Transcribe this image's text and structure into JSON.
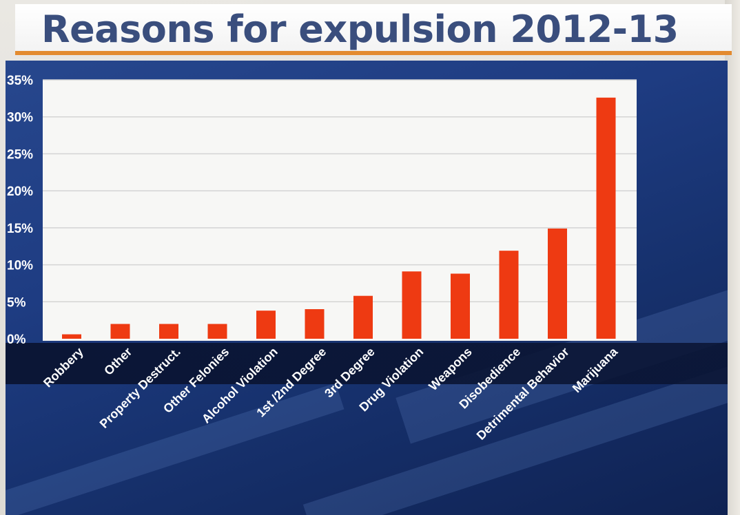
{
  "chart_data": {
    "type": "bar",
    "title": "Reasons for expulsion 2012-13",
    "xlabel": "",
    "ylabel": "",
    "ylim": [
      0,
      35
    ],
    "yticks": [
      "0%",
      "5%",
      "10%",
      "15%",
      "20%",
      "25%",
      "30%",
      "35%"
    ],
    "grid": true,
    "categories": [
      "Robbery",
      "Other",
      "Property Destruct.",
      "Other Felonies",
      "Alcohol Violation",
      "1st /2nd Degree",
      "3rd Degree",
      "Drug Violation",
      "Weapons",
      "Disobedience",
      "Detrimental Behavior",
      "Marijuana"
    ],
    "values": [
      0.6,
      2.0,
      2.0,
      2.0,
      3.8,
      4.0,
      5.8,
      9.1,
      8.8,
      11.9,
      14.9,
      32.6
    ],
    "bar_color": "#ee3a12"
  }
}
